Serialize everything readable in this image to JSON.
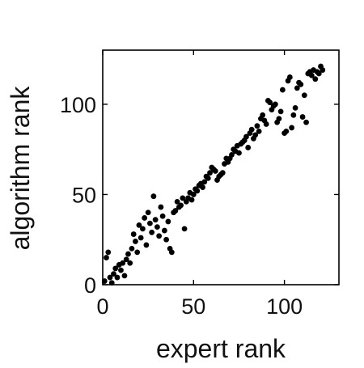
{
  "chart_data": {
    "type": "scatter",
    "title": "",
    "xlabel": "expert rank",
    "ylabel": "algorithm rank",
    "xlim": [
      0,
      130
    ],
    "ylim": [
      0,
      130
    ],
    "xticks": [
      0,
      50,
      100
    ],
    "yticks": [
      0,
      50,
      100
    ],
    "grid": false,
    "legend": "none",
    "marker_color": "#000000",
    "series": [
      {
        "points": [
          [
            1,
            2
          ],
          [
            2,
            15
          ],
          [
            3,
            18
          ],
          [
            4,
            4
          ],
          [
            5,
            1
          ],
          [
            6,
            6
          ],
          [
            7,
            9
          ],
          [
            8,
            4
          ],
          [
            9,
            11
          ],
          [
            10,
            8
          ],
          [
            11,
            12
          ],
          [
            12,
            5
          ],
          [
            13,
            14
          ],
          [
            14,
            17
          ],
          [
            15,
            12
          ],
          [
            16,
            20
          ],
          [
            17,
            28
          ],
          [
            18,
            24
          ],
          [
            19,
            18
          ],
          [
            20,
            33
          ],
          [
            21,
            26
          ],
          [
            22,
            31
          ],
          [
            23,
            37
          ],
          [
            24,
            22
          ],
          [
            25,
            40
          ],
          [
            26,
            34
          ],
          [
            27,
            29
          ],
          [
            28,
            49
          ],
          [
            29,
            36
          ],
          [
            30,
            32
          ],
          [
            31,
            27
          ],
          [
            32,
            43
          ],
          [
            33,
            38
          ],
          [
            34,
            30
          ],
          [
            35,
            25
          ],
          [
            36,
            35
          ],
          [
            37,
            20
          ],
          [
            38,
            18
          ],
          [
            39,
            40
          ],
          [
            40,
            41
          ],
          [
            41,
            46
          ],
          [
            42,
            43
          ],
          [
            43,
            44
          ],
          [
            44,
            48
          ],
          [
            45,
            31
          ],
          [
            46,
            46
          ],
          [
            47,
            48
          ],
          [
            48,
            51
          ],
          [
            49,
            47
          ],
          [
            50,
            50
          ],
          [
            51,
            53
          ],
          [
            52,
            52
          ],
          [
            53,
            55
          ],
          [
            54,
            56
          ],
          [
            55,
            54
          ],
          [
            56,
            57
          ],
          [
            57,
            60
          ],
          [
            58,
            59
          ],
          [
            59,
            62
          ],
          [
            60,
            65
          ],
          [
            61,
            64
          ],
          [
            62,
            63
          ],
          [
            63,
            58
          ],
          [
            64,
            60
          ],
          [
            65,
            61
          ],
          [
            66,
            62
          ],
          [
            67,
            67
          ],
          [
            68,
            70
          ],
          [
            69,
            68
          ],
          [
            70,
            70
          ],
          [
            71,
            72
          ],
          [
            72,
            75
          ],
          [
            73,
            74
          ],
          [
            74,
            77
          ],
          [
            75,
            73
          ],
          [
            76,
            78
          ],
          [
            77,
            79
          ],
          [
            78,
            80
          ],
          [
            79,
            82
          ],
          [
            80,
            76
          ],
          [
            81,
            84
          ],
          [
            82,
            86
          ],
          [
            83,
            81
          ],
          [
            84,
            83
          ],
          [
            85,
            88
          ],
          [
            86,
            85
          ],
          [
            87,
            92
          ],
          [
            88,
            94
          ],
          [
            89,
            91
          ],
          [
            90,
            89
          ],
          [
            91,
            102
          ],
          [
            92,
            101
          ],
          [
            93,
            97
          ],
          [
            94,
            99
          ],
          [
            95,
            100
          ],
          [
            96,
            90
          ],
          [
            97,
            92
          ],
          [
            98,
            96
          ],
          [
            99,
            108
          ],
          [
            100,
            84
          ],
          [
            101,
            85
          ],
          [
            102,
            113
          ],
          [
            103,
            115
          ],
          [
            104,
            87
          ],
          [
            105,
            94
          ],
          [
            106,
            98
          ],
          [
            107,
            109
          ],
          [
            108,
            112
          ],
          [
            109,
            111
          ],
          [
            110,
            93
          ],
          [
            111,
            105
          ],
          [
            112,
            90
          ],
          [
            113,
            117
          ],
          [
            114,
            118
          ],
          [
            115,
            116
          ],
          [
            116,
            119
          ],
          [
            117,
            114
          ],
          [
            118,
            118
          ],
          [
            119,
            117
          ],
          [
            120,
            121
          ],
          [
            121,
            119
          ]
        ]
      }
    ]
  }
}
